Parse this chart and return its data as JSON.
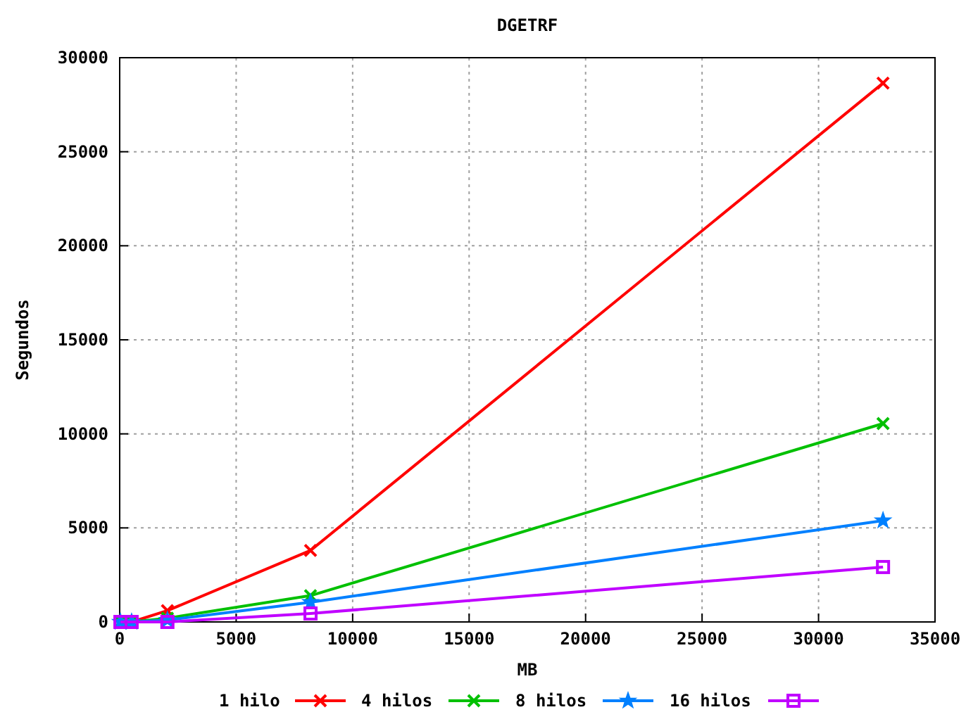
{
  "chart_data": {
    "type": "line",
    "title": "DGETRF",
    "xlabel": "MB",
    "ylabel": "Segundos",
    "xlim": [
      0,
      35000
    ],
    "xticks": [
      0,
      5000,
      10000,
      15000,
      20000,
      25000,
      30000,
      35000
    ],
    "ylim": [
      0,
      30000
    ],
    "yticks": [
      0,
      5000,
      10000,
      15000,
      20000,
      25000,
      30000
    ],
    "x": [
      32,
      512,
      2048,
      8192,
      32768
    ],
    "grid": true,
    "legend": "bottom",
    "line_style": "solid",
    "series": [
      {
        "name": "1 hilo",
        "color": "#ff0000",
        "marker": "cross",
        "values": [
          0,
          0,
          600,
          3800,
          28650
        ]
      },
      {
        "name": "4 hilos",
        "color": "#00c000",
        "marker": "cross",
        "values": [
          0,
          0,
          200,
          1400,
          10550
        ]
      },
      {
        "name": "8 hilos",
        "color": "#0080ff",
        "marker": "star",
        "values": [
          0,
          0,
          100,
          1050,
          5390
        ]
      },
      {
        "name": "16 hilos",
        "color": "#c000ff",
        "marker": "square",
        "values": [
          0,
          0,
          0,
          450,
          2920
        ]
      }
    ]
  }
}
